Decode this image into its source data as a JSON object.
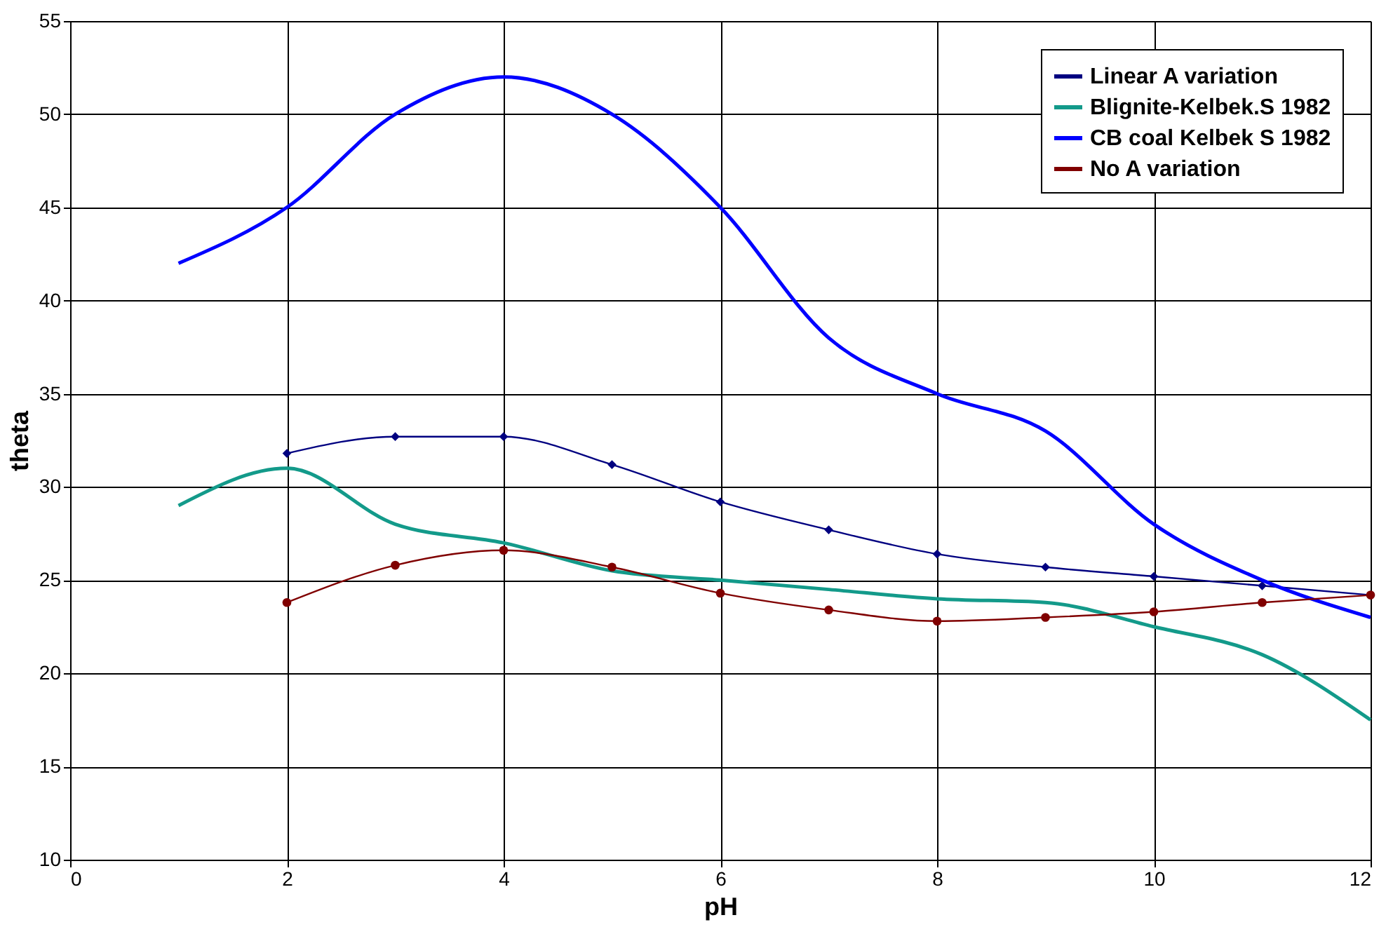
{
  "chart_data": {
    "type": "line",
    "xlabel": "pH",
    "ylabel": "theta",
    "xlim": [
      0,
      12
    ],
    "ylim": [
      10,
      55
    ],
    "xticks": [
      0,
      2,
      4,
      6,
      8,
      10,
      12
    ],
    "yticks": [
      10,
      15,
      20,
      25,
      30,
      35,
      40,
      45,
      50,
      55
    ],
    "grid": true,
    "legend": "top right",
    "line_style": "solid",
    "series": [
      {
        "name": "Linear A variation",
        "color": "#000080",
        "marker": "diamond",
        "x": [
          2,
          3,
          4,
          5,
          6,
          7,
          8,
          9,
          10,
          11,
          12
        ],
        "values": [
          31.8,
          32.7,
          32.7,
          31.2,
          29.2,
          27.7,
          26.4,
          25.7,
          25.2,
          24.7,
          24.2
        ]
      },
      {
        "name": "Blignite-Kelbek.S 1982",
        "color": "#139a8a",
        "marker": "none",
        "x": [
          1,
          2,
          3,
          4,
          5,
          6,
          7,
          8,
          9,
          10,
          11,
          12
        ],
        "values": [
          29,
          31,
          28,
          27,
          25.5,
          25,
          24.5,
          24,
          23.8,
          22.5,
          21,
          17.5
        ]
      },
      {
        "name": "CB coal Kelbek S 1982",
        "color": "#0000ff",
        "marker": "none",
        "x": [
          1,
          2,
          3,
          4,
          5,
          6,
          7,
          8,
          9,
          10,
          11,
          12
        ],
        "values": [
          42,
          45,
          50,
          52,
          50,
          45,
          38,
          35,
          33,
          28,
          25,
          23
        ]
      },
      {
        "name": "No A variation",
        "color": "#800000",
        "marker": "circle",
        "x": [
          2,
          3,
          4,
          5,
          6,
          7,
          8,
          9,
          10,
          11,
          12
        ],
        "values": [
          23.8,
          25.8,
          26.6,
          25.7,
          24.3,
          23.4,
          22.8,
          23.0,
          23.3,
          23.8,
          24.2
        ]
      }
    ]
  }
}
